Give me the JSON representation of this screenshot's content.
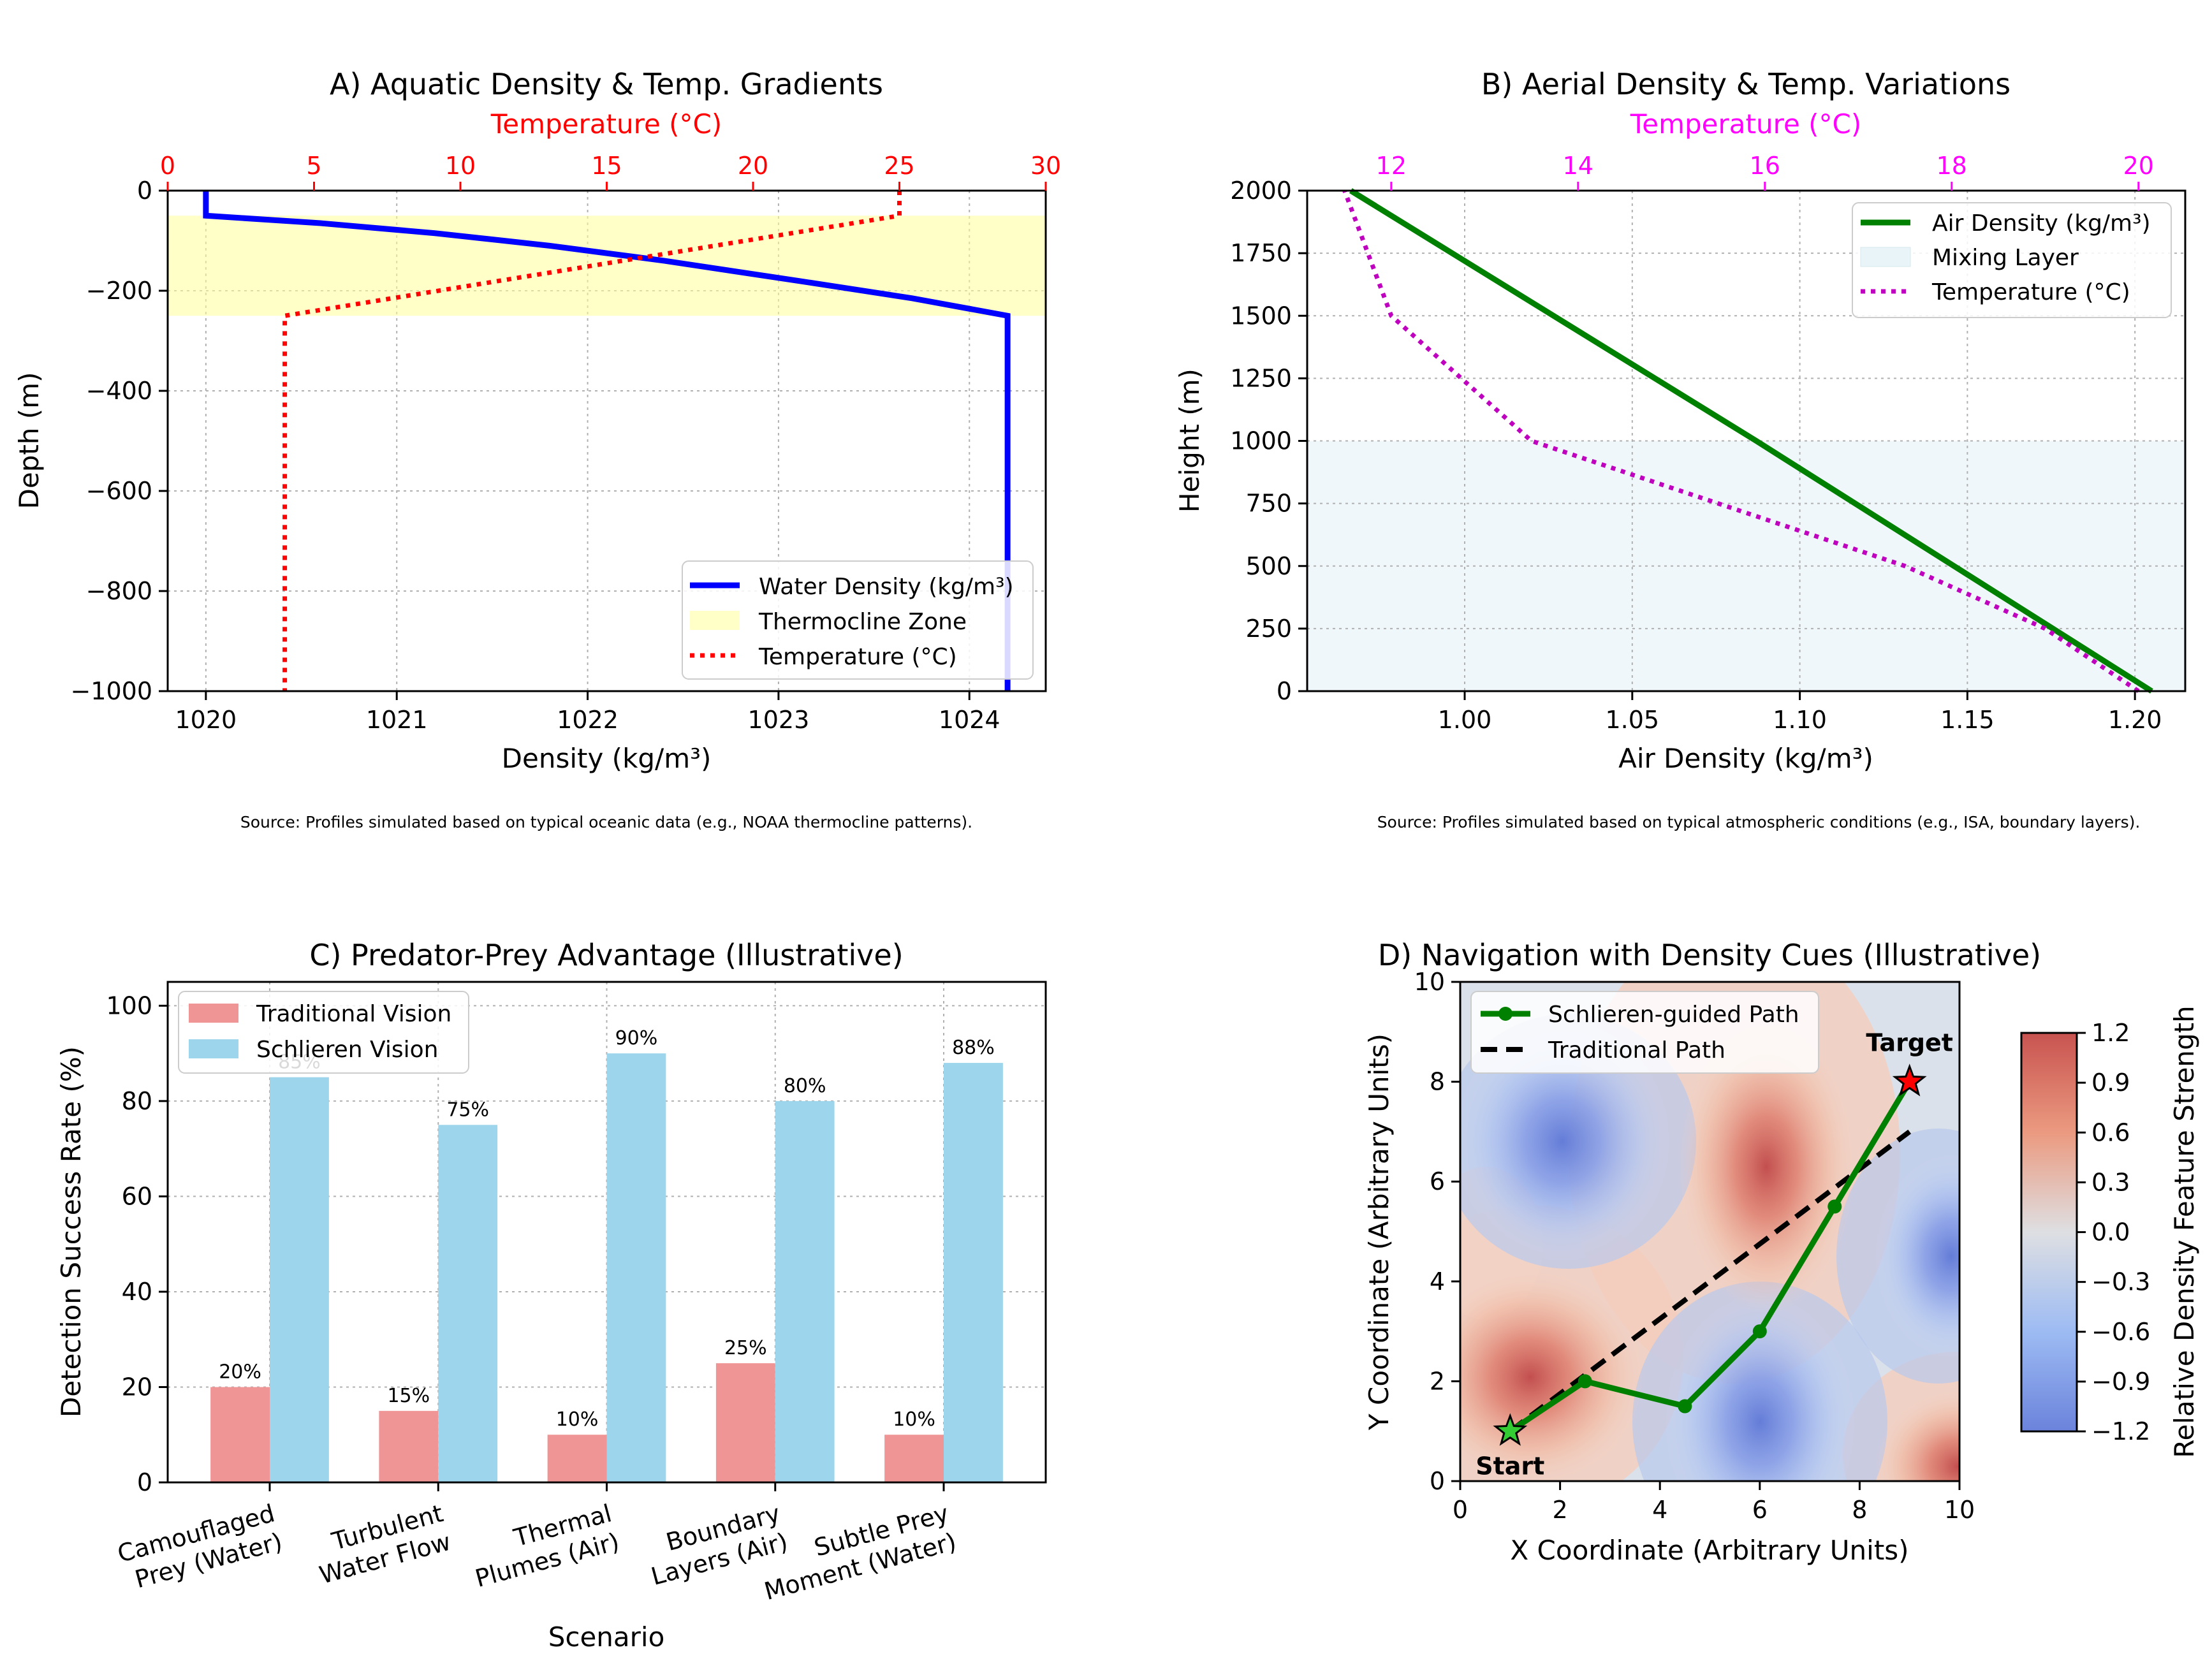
{
  "chart_data": [
    {
      "panel": "A",
      "type": "line",
      "title": "A) Aquatic Density & Temp. Gradients",
      "xlabel": "Density (kg/m³)",
      "ylabel": "Depth (m)",
      "x2label": "Temperature (°C)",
      "xlim": [
        1019.8,
        1024.4
      ],
      "ylim": [
        -1000,
        0
      ],
      "x2lim": [
        0,
        30
      ],
      "xticks": [
        "1020",
        "1021",
        "1022",
        "1023",
        "1024"
      ],
      "yticks": [
        "0",
        "−200",
        "−400",
        "−600",
        "−800",
        "−1000"
      ],
      "x2ticks": [
        "0",
        "5",
        "10",
        "15",
        "20",
        "25",
        "30"
      ],
      "grid": true,
      "legend_position": "lower-right",
      "colors": {
        "density": "#0000ff",
        "temperature": "#ff0000",
        "zone": "#ffff99"
      },
      "series": [
        {
          "name": "Water Density (kg/m³)",
          "axis": "bottom",
          "points": [
            [
              1020.0,
              0
            ],
            [
              1020.0,
              -50
            ],
            [
              1020.6,
              -65
            ],
            [
              1021.2,
              -85
            ],
            [
              1021.8,
              -110
            ],
            [
              1022.4,
              -140
            ],
            [
              1023.1,
              -180
            ],
            [
              1023.7,
              -215
            ],
            [
              1024.2,
              -250
            ],
            [
              1024.2,
              -1000
            ]
          ]
        },
        {
          "name": "Temperature (°C)",
          "axis": "top",
          "points": [
            [
              25,
              0
            ],
            [
              25,
              -50
            ],
            [
              4,
              -250
            ],
            [
              4,
              -1000
            ]
          ]
        }
      ],
      "band": {
        "name": "Thermocline Zone",
        "from": -250,
        "to": -50
      },
      "source": "Source: Profiles simulated based on typical oceanic data (e.g., NOAA thermocline patterns)."
    },
    {
      "panel": "B",
      "type": "line",
      "title": "B) Aerial Density & Temp. Variations",
      "xlabel": "Air Density (kg/m³)",
      "ylabel": "Height (m)",
      "x2label": "Temperature (°C)",
      "xlim": [
        0.953,
        1.215
      ],
      "ylim": [
        0,
        2000
      ],
      "x2lim": [
        11.1,
        20.5
      ],
      "xticks": [
        "1.00",
        "1.05",
        "1.10",
        "1.15",
        "1.20"
      ],
      "yticks": [
        "0",
        "250",
        "500",
        "750",
        "1000",
        "1250",
        "1500",
        "1750",
        "2000"
      ],
      "x2ticks": [
        "12",
        "14",
        "16",
        "18",
        "20"
      ],
      "grid": true,
      "legend_position": "top-right",
      "colors": {
        "density": "#008000",
        "temperature": "#bf00bf",
        "layer": "#e8f4f8",
        "x2label": "#ff00ff"
      },
      "series": [
        {
          "name": "Air Density (kg/m³)",
          "axis": "bottom",
          "points": [
            [
              1.205,
              0
            ],
            [
              1.087,
              1000
            ],
            [
              0.966,
              2000
            ]
          ]
        },
        {
          "name": "Temperature (°C)",
          "axis": "top",
          "points": [
            [
              20.0,
              0
            ],
            [
              19.0,
              250
            ],
            [
              17.5,
              500
            ],
            [
              15.5,
              750
            ],
            [
              13.5,
              1000
            ],
            [
              12.0,
              1500
            ],
            [
              11.5,
              2000
            ]
          ]
        }
      ],
      "band": {
        "name": "Mixing Layer",
        "from": 0,
        "to": 1000
      },
      "source": "Source: Profiles simulated based on typical atmospheric conditions (e.g., ISA, boundary layers)."
    },
    {
      "panel": "C",
      "type": "bar",
      "title": "C) Predator-Prey Advantage (Illustrative)",
      "xlabel": "Scenario",
      "ylabel": "Detection Success Rate (%)",
      "ylim": [
        0,
        105
      ],
      "yticks": [
        "0",
        "20",
        "40",
        "60",
        "80",
        "100"
      ],
      "grid": true,
      "legend_position": "top-left",
      "categories": [
        [
          "Camouflaged",
          "Prey (Water)"
        ],
        [
          "Turbulent",
          "Water Flow"
        ],
        [
          "Thermal",
          "Plumes (Air)"
        ],
        [
          "Boundary",
          "Layers (Air)"
        ],
        [
          "Subtle Prey",
          "Moment (Water)"
        ]
      ],
      "series": [
        {
          "name": "Traditional Vision",
          "color": "#f09595",
          "values": [
            20,
            15,
            10,
            25,
            10
          ],
          "labels": [
            "20%",
            "15%",
            "10%",
            "25%",
            "10%"
          ]
        },
        {
          "name": "Schlieren Vision",
          "color": "#9dd5ec",
          "values": [
            85,
            75,
            90,
            80,
            88
          ],
          "labels": [
            "85%",
            "75%",
            "90%",
            "80%",
            "88%"
          ]
        }
      ]
    },
    {
      "panel": "D",
      "type": "heatmap",
      "title": "D) Navigation with Density Cues (Illustrative)",
      "xlabel": "X Coordinate (Arbitrary Units)",
      "ylabel": "Y Coordinate (Arbitrary Units)",
      "xlim": [
        0,
        10
      ],
      "ylim": [
        0,
        10
      ],
      "xticks": [
        "0",
        "2",
        "4",
        "6",
        "8",
        "10"
      ],
      "yticks": [
        "0",
        "2",
        "4",
        "6",
        "8",
        "10"
      ],
      "colorbar_label": "Relative Density Feature Strength",
      "colorbar_ticks": [
        "1.2",
        "0.9",
        "0.6",
        "0.3",
        "0.0",
        "−0.3",
        "−0.6",
        "−0.9",
        "−1.2"
      ],
      "colorbar_range": [
        -1.2,
        1.2
      ],
      "legend_position": "top-left",
      "series": [
        {
          "name": "Schlieren-guided Path",
          "color": "#008000",
          "points": [
            [
              1,
              1
            ],
            [
              2.5,
              2
            ],
            [
              4.5,
              1.5
            ],
            [
              6,
              3
            ],
            [
              7.5,
              5.5
            ],
            [
              9,
              8
            ]
          ]
        },
        {
          "name": "Traditional Path",
          "color": "#000000",
          "points": [
            [
              1,
              1
            ],
            [
              9,
              7
            ]
          ]
        }
      ],
      "markers": [
        {
          "label": "Start",
          "x": 1,
          "y": 1,
          "color": "#33cc33"
        },
        {
          "label": "Target",
          "x": 9,
          "y": 8,
          "color": "#ff0000"
        }
      ]
    }
  ]
}
